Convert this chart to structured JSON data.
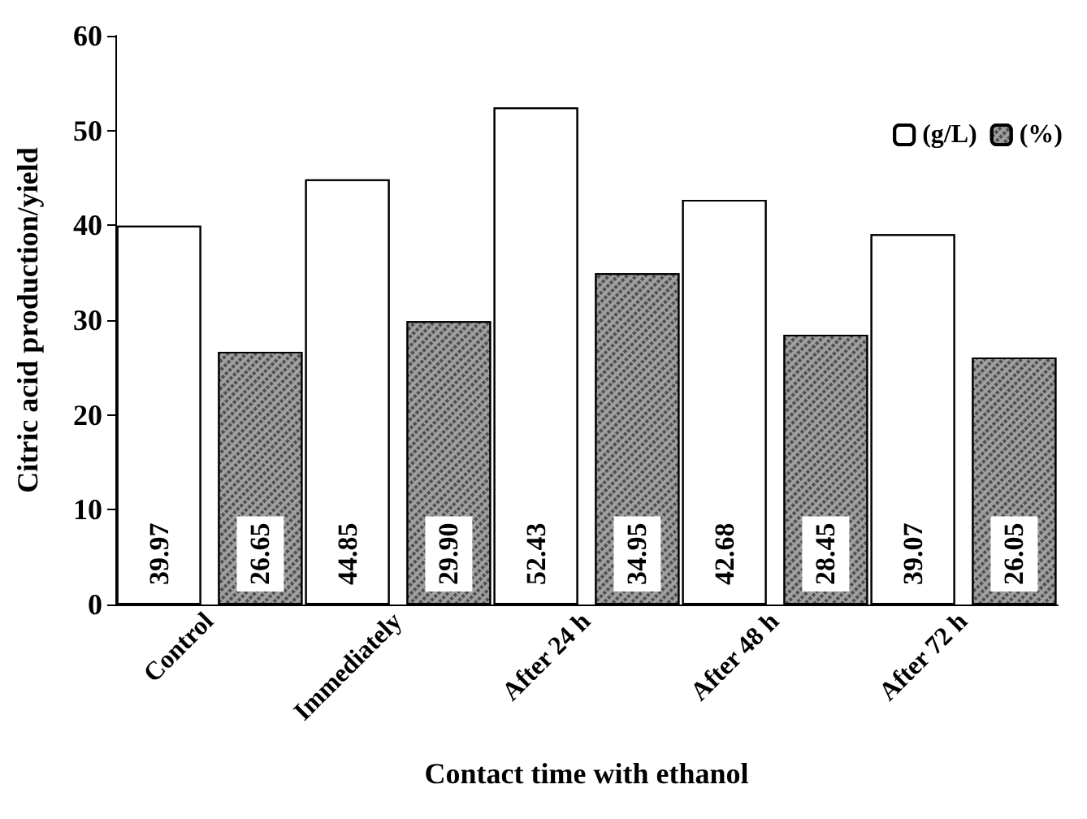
{
  "chart_data": {
    "type": "bar",
    "xlabel": "Contact time with ethanol",
    "ylabel": "Citric acid production/yield",
    "categories": [
      "Control",
      "Immediately",
      "After 24 h",
      "After 48 h",
      "After 72 h"
    ],
    "series": [
      {
        "name": "(g/L)",
        "color": "#ffffff",
        "values": [
          39.97,
          44.85,
          52.43,
          42.68,
          39.07
        ]
      },
      {
        "name": "(%)",
        "color": "#a0a0a0",
        "values": [
          26.65,
          29.9,
          34.95,
          28.45,
          26.05
        ]
      }
    ],
    "value_labels": [
      [
        "39.97",
        "44.85",
        "52.43",
        "42.68",
        "39.07"
      ],
      [
        "26.65",
        "29.90",
        "34.95",
        "28.45",
        "26.05"
      ]
    ],
    "ylim": [
      0,
      60
    ],
    "yticks": [
      0,
      10,
      20,
      30,
      40,
      50,
      60
    ],
    "grid": false,
    "legend": "top right"
  }
}
